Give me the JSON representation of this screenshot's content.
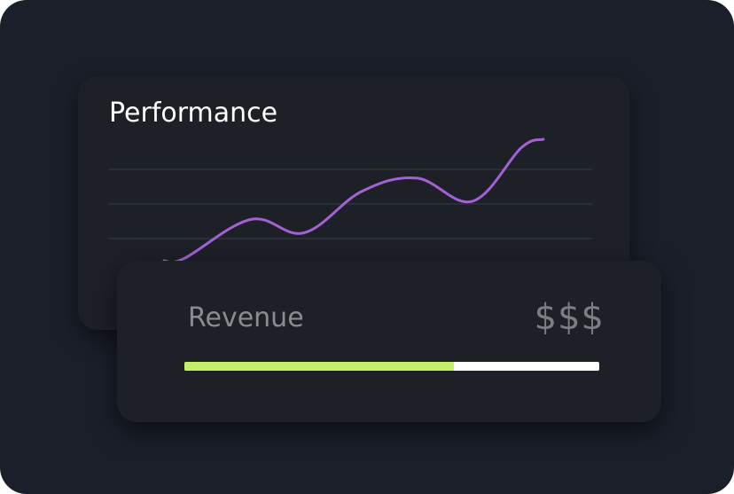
{
  "performance_card": {
    "title": "Performance",
    "line_color": "#a362d4",
    "grid_color": "#2f333b",
    "chart_data": {
      "type": "line",
      "grid": true,
      "gridlines": 3,
      "points": [
        0.0,
        0.02,
        0.34,
        0.23,
        0.57,
        0.68,
        0.49,
        0.93,
        1.0
      ]
    }
  },
  "revenue_card": {
    "label": "Revenue",
    "value": "$$$",
    "progress": 0.65,
    "progress_color": "#c3ee69",
    "track_color": "#ffffff"
  }
}
